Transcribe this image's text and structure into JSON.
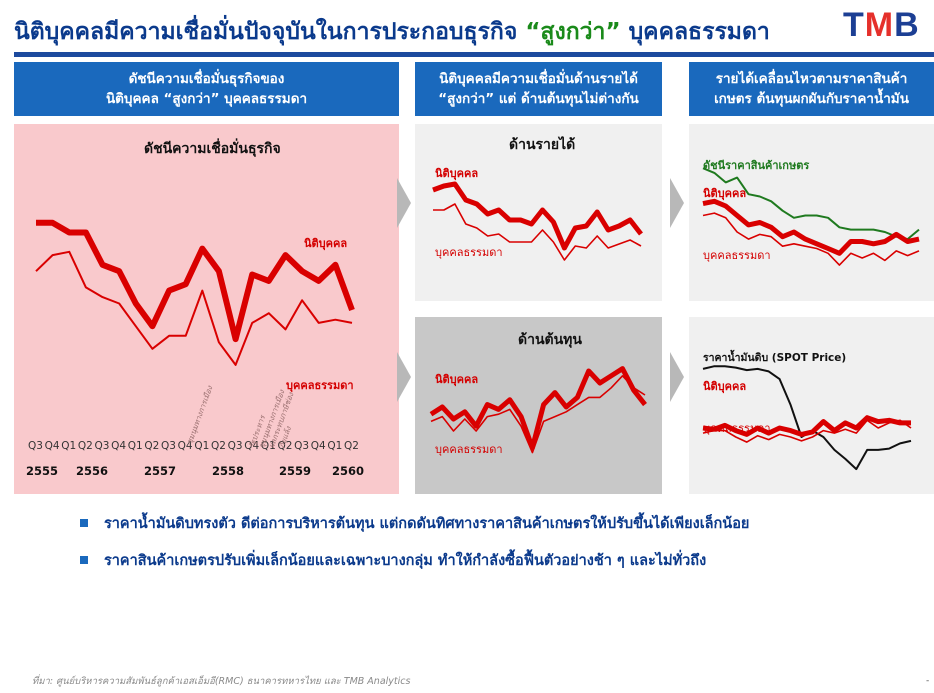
{
  "header": {
    "title_main": "นิติบุคคลมีความเชื่อมั่นปัจจุบันในการประกอบธุรกิจ ",
    "title_accent": "“สูงกว่า”",
    "title_tail": " บุคคลธรรมดา",
    "logo_t": "T",
    "logo_m": "M",
    "logo_b": "B"
  },
  "columns": [
    {
      "line1": "ดัชนีความเชื่อมั่นธุรกิจของ",
      "line2": "นิติบุคคล “สูงกว่า” บุคคลธรรมดา"
    },
    {
      "line1": "นิติบุคคลมีความเชื่อมั่นด้านรายได้",
      "line2": "“สูงกว่า” แต่ ด้านต้นทุนไม่ต่างกัน"
    },
    {
      "line1": "รายได้เคลื่อนไหวตามราคาสินค้า",
      "line2": "เกษตร ต้นทุนผกผันกับราคาน้ำมัน"
    }
  ],
  "colors": {
    "red": "#d90000",
    "green": "#1f7a1f",
    "black": "#111111",
    "header_blue": "#1a69bd",
    "pink_bg": "#f9c9cc",
    "light_gray_bg": "#f0f0f0",
    "dark_gray_bg": "#c8c8c8"
  },
  "bullets": [
    "ราคาน้ำมันดิบทรงตัว ดีต่อการบริหารต้นทุน แต่กดดันทิศทางราคาสินค้าเกษตรให้ปรับขึ้นได้เพียงเล็กน้อย",
    "ราคาสินค้าเกษตรปรับเพิ่มเล็กน้อยและเฉพาะบางกลุ่ม ทำให้กำลังซื้อฟื้นตัวอย่างช้า ๆ และไม่ทั่วถึง"
  ],
  "source": "ที่มา: ศูนย์บริหารความสัมพันธ์ลูกค้าเอสเอ็มอี(RMC) ธนาคารทหารไทย และ TMB Analytics",
  "page_number": "-",
  "chart_data": [
    {
      "type": "line",
      "title": "ดัชนีความเชื่อมั่นธุรกิจ",
      "x": [
        "Q3",
        "Q4",
        "Q1",
        "Q2",
        "Q3",
        "Q4",
        "Q1",
        "Q2",
        "Q3",
        "Q4",
        "Q1",
        "Q2",
        "Q3",
        "Q4",
        "Q1",
        "Q2",
        "Q3",
        "Q4",
        "Q1",
        "Q2"
      ],
      "year_labels": [
        "2555",
        "2556",
        "2557",
        "2558",
        "2559",
        "2560"
      ],
      "annotations": [
        "ชุมนุมทางการเมือง",
        "รัฐประหาร",
        "ชุมนุมทางการเมือง",
        "ผลกระทบภาษีช่อง",
        "ภัยแล้ง"
      ],
      "series": [
        {
          "name": "นิติบุคคล",
          "values": [
            73,
            73,
            70,
            70,
            60,
            58,
            48,
            41,
            52,
            54,
            65,
            58,
            37,
            57,
            55,
            63,
            58,
            55,
            60,
            46
          ]
        },
        {
          "name": "บุคคลธรรมดา",
          "values": [
            58,
            63,
            64,
            53,
            50,
            48,
            41,
            34,
            38,
            38,
            52,
            36,
            29,
            42,
            45,
            40,
            49,
            42,
            43,
            42
          ]
        }
      ],
      "ylim": [
        20,
        85
      ]
    },
    {
      "type": "line",
      "title": "ด้านรายได้",
      "series": [
        {
          "name": "นิติบุคคล",
          "values": [
            62,
            64,
            65,
            57,
            55,
            50,
            52,
            47,
            47,
            45,
            52,
            46,
            33,
            43,
            44,
            51,
            42,
            44,
            47,
            40
          ]
        },
        {
          "name": "บุคคลธรรมดา",
          "values": [
            52,
            52,
            55,
            45,
            43,
            39,
            40,
            36,
            36,
            36,
            42,
            36,
            27,
            34,
            33,
            39,
            33,
            35,
            37,
            34
          ]
        }
      ],
      "ylim": [
        20,
        75
      ]
    },
    {
      "type": "line",
      "title": "ด้านต้นทุน",
      "series": [
        {
          "name": "นิติบุคคล",
          "values": [
            47,
            50,
            45,
            48,
            42,
            51,
            49,
            53,
            46,
            33,
            51,
            56,
            50,
            54,
            65,
            60,
            63,
            66,
            57,
            51
          ]
        },
        {
          "name": "บุคคลธรรมดา",
          "values": [
            44,
            46,
            40,
            45,
            40,
            46,
            47,
            49,
            42,
            31,
            44,
            46,
            48,
            51,
            54,
            54,
            58,
            63,
            58,
            55
          ]
        }
      ],
      "ylim": [
        25,
        75
      ]
    },
    {
      "type": "line",
      "title": "",
      "series": [
        {
          "name": "ดัชนีราคาสินค้าเกษตร",
          "values": [
            74,
            72,
            68,
            70,
            63,
            62,
            60,
            56,
            53,
            54,
            54,
            53,
            49,
            48,
            48,
            48,
            47,
            45,
            44,
            48
          ]
        },
        {
          "name": "นิติบุคคล",
          "values": [
            59,
            60,
            58,
            54,
            50,
            51,
            49,
            45,
            47,
            44,
            42,
            40,
            38,
            43,
            43,
            42,
            43,
            46,
            43,
            44
          ]
        },
        {
          "name": "บุคคลธรรมดา",
          "values": [
            54,
            55,
            53,
            47,
            44,
            46,
            45,
            41,
            42,
            41,
            40,
            38,
            33,
            38,
            36,
            38,
            35,
            39,
            37,
            39
          ]
        }
      ],
      "ylim": [
        25,
        80
      ]
    },
    {
      "type": "line",
      "title": "ราคาน้ำมันดิบ (SPOT Price)",
      "series": [
        {
          "name": "ราคาน้ำมันดิบ (SPOT Price)",
          "values": [
            108,
            110,
            110,
            109,
            107,
            108,
            106,
            100,
            80,
            55,
            60,
            55,
            45,
            38,
            30,
            45,
            45,
            46,
            50,
            52
          ]
        },
        {
          "name": "นิติบุคคล",
          "values": [
            62,
            61,
            64,
            60,
            57,
            62,
            58,
            62,
            60,
            57,
            59,
            67,
            60,
            66,
            62,
            70,
            67,
            68,
            66,
            66
          ]
        },
        {
          "name": "บุคคลธรรมดา",
          "values": [
            58,
            60,
            60,
            55,
            51,
            56,
            53,
            57,
            55,
            52,
            55,
            60,
            58,
            61,
            58,
            68,
            62,
            66,
            68,
            62
          ]
        }
      ],
      "ylim": [
        20,
        125
      ]
    }
  ]
}
